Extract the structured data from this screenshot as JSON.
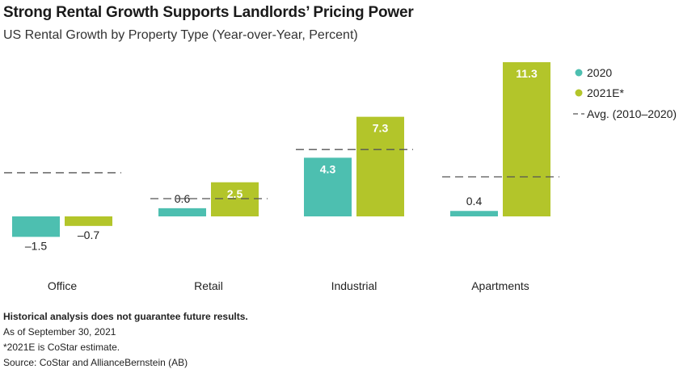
{
  "header": {
    "title": "Strong Rental Growth Supports Landlords’ Pricing Power",
    "subtitle": "US Rental Growth by Property Type (Year-over-Year, Percent)"
  },
  "chart_data": {
    "type": "bar",
    "categories": [
      "Office",
      "Retail",
      "Industrial",
      "Apartments"
    ],
    "series": [
      {
        "name": "2020",
        "values": [
          -1.5,
          0.6,
          4.3,
          0.4
        ],
        "labels": [
          "–1.5",
          "0.6",
          "4.3",
          "0.4"
        ],
        "color": "#4dbfb0"
      },
      {
        "name": "2021E*",
        "values": [
          -0.7,
          2.5,
          7.3,
          11.3
        ],
        "labels": [
          "–0.7",
          "2.5",
          "7.3",
          "11.3"
        ],
        "color": "#b3c52a"
      }
    ],
    "average": {
      "name": "Avg. (2010–2020)",
      "values": [
        3.2,
        1.3,
        4.9,
        2.9
      ],
      "color": "#555555",
      "style": "dashed"
    },
    "legend": {
      "placement": "top-right",
      "items": [
        "2020",
        "2021E*",
        "Avg. (2010–2020)"
      ]
    },
    "ylim": [
      -2.5,
      12.5
    ],
    "grid": false
  },
  "footnotes": {
    "disclaimer": "Historical analysis does not guarantee future results.",
    "date": "As of September 30, 2021",
    "estimate_note": "*2021E is CoStar estimate.",
    "source": "Source: CoStar and AllianceBernstein (AB)"
  }
}
